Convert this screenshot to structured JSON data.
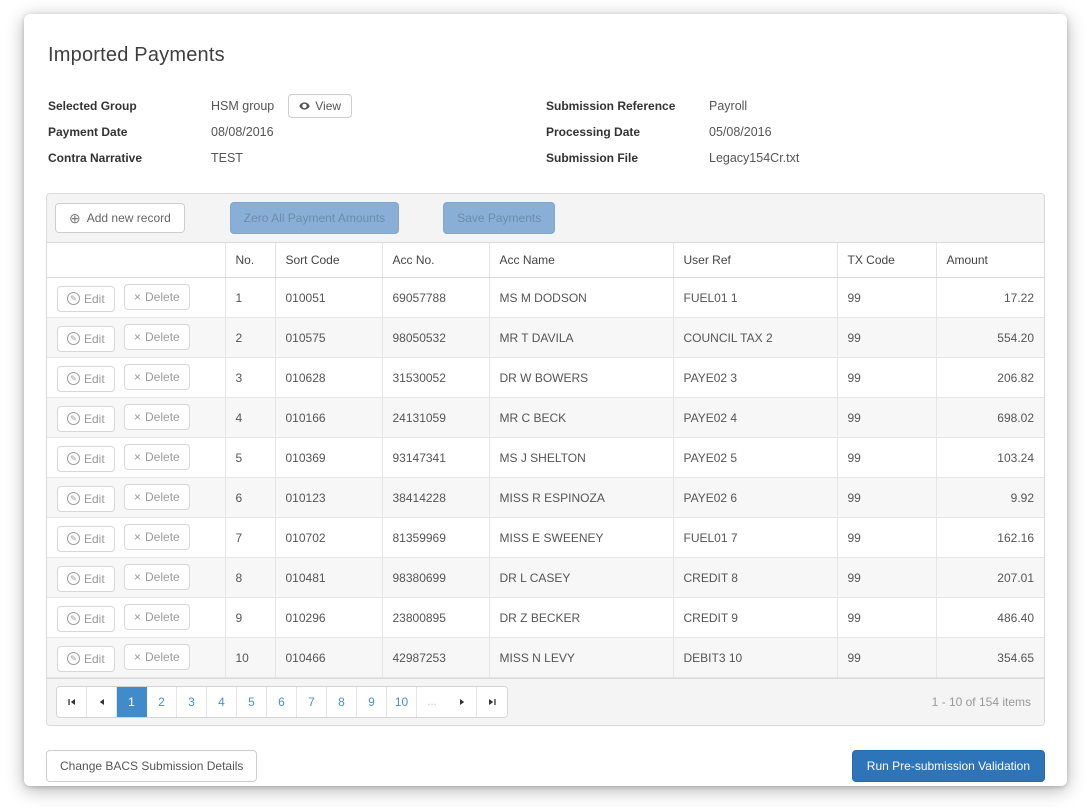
{
  "page": {
    "title": "Imported Payments"
  },
  "info": {
    "left": [
      {
        "label": "Selected Group",
        "value": "HSM group",
        "action": "View"
      },
      {
        "label": "Payment Date",
        "value": "08/08/2016"
      },
      {
        "label": "Contra Narrative",
        "value": "TEST"
      }
    ],
    "right": [
      {
        "label": "Submission Reference",
        "value": "Payroll"
      },
      {
        "label": "Processing Date",
        "value": "05/08/2016"
      },
      {
        "label": "Submission File",
        "value": "Legacy154Cr.txt"
      }
    ]
  },
  "toolbar": {
    "add_label": "Add new record",
    "zero_label": "Zero All Payment Amounts",
    "save_label": "Save Payments"
  },
  "grid": {
    "columns": [
      "No.",
      "Sort Code",
      "Acc No.",
      "Acc Name",
      "User Ref",
      "TX Code",
      "Amount"
    ],
    "row_actions": {
      "edit": "Edit",
      "delete": "Delete"
    },
    "rows": [
      {
        "no": "1",
        "sort_code": "010051",
        "acc_no": "69057788",
        "acc_name": "MS M DODSON",
        "user_ref": "FUEL01 1",
        "tx_code": "99",
        "amount": "17.22"
      },
      {
        "no": "2",
        "sort_code": "010575",
        "acc_no": "98050532",
        "acc_name": "MR T DAVILA",
        "user_ref": "COUNCIL TAX 2",
        "tx_code": "99",
        "amount": "554.20"
      },
      {
        "no": "3",
        "sort_code": "010628",
        "acc_no": "31530052",
        "acc_name": "DR W BOWERS",
        "user_ref": "PAYE02 3",
        "tx_code": "99",
        "amount": "206.82"
      },
      {
        "no": "4",
        "sort_code": "010166",
        "acc_no": "24131059",
        "acc_name": "MR C BECK",
        "user_ref": "PAYE02 4",
        "tx_code": "99",
        "amount": "698.02"
      },
      {
        "no": "5",
        "sort_code": "010369",
        "acc_no": "93147341",
        "acc_name": "MS J SHELTON",
        "user_ref": "PAYE02 5",
        "tx_code": "99",
        "amount": "103.24"
      },
      {
        "no": "6",
        "sort_code": "010123",
        "acc_no": "38414228",
        "acc_name": "MISS R ESPINOZA",
        "user_ref": "PAYE02 6",
        "tx_code": "99",
        "amount": "9.92"
      },
      {
        "no": "7",
        "sort_code": "010702",
        "acc_no": "81359969",
        "acc_name": "MISS E SWEENEY",
        "user_ref": "FUEL01 7",
        "tx_code": "99",
        "amount": "162.16"
      },
      {
        "no": "8",
        "sort_code": "010481",
        "acc_no": "98380699",
        "acc_name": "DR L CASEY",
        "user_ref": "CREDIT 8",
        "tx_code": "99",
        "amount": "207.01"
      },
      {
        "no": "9",
        "sort_code": "010296",
        "acc_no": "23800895",
        "acc_name": "DR Z BECKER",
        "user_ref": "CREDIT 9",
        "tx_code": "99",
        "amount": "486.40"
      },
      {
        "no": "10",
        "sort_code": "010466",
        "acc_no": "42987253",
        "acc_name": "MISS N LEVY",
        "user_ref": "DEBIT3 10",
        "tx_code": "99",
        "amount": "354.65"
      }
    ]
  },
  "pager": {
    "pages": [
      "1",
      "2",
      "3",
      "4",
      "5",
      "6",
      "7",
      "8",
      "9",
      "10"
    ],
    "active_page": "1",
    "ellipsis": "...",
    "summary": "1 - 10 of 154 items"
  },
  "footer": {
    "change_label": "Change BACS Submission Details",
    "run_label": "Run Pre-submission Validation"
  },
  "icons": {
    "view": "eye-icon",
    "add": "plus-circle-icon",
    "edit": "pencil-circle-icon",
    "delete": "x-icon",
    "pager": [
      "first-page-icon",
      "prev-page-icon",
      "next-page-icon",
      "last-page-icon"
    ]
  },
  "colors": {
    "accent": "#428bca",
    "accent_dark": "#2d74b8",
    "accent_disabled": "#8aafd6",
    "toolbar_bg": "#f4f4f4",
    "border": "#d9d9d9",
    "alt_row_bg": "#f7f7f7"
  }
}
